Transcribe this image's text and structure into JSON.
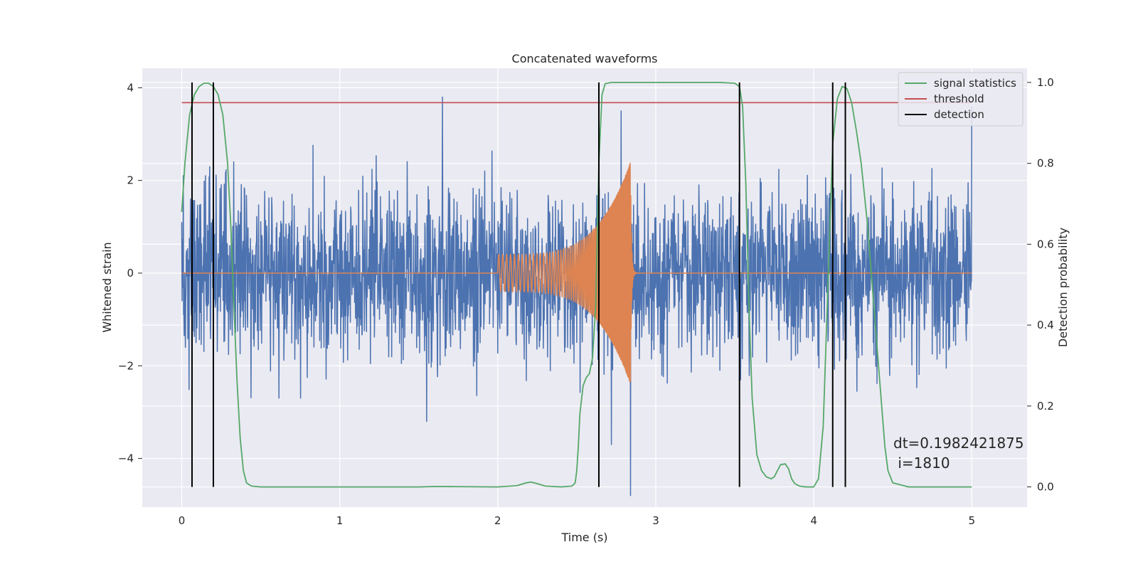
{
  "chart_data": {
    "type": "line",
    "title": "Concatenated waveforms",
    "xlabel": "Time (s)",
    "ylabel": "Whitened strain",
    "y2label": "Detection probability",
    "xlim": [
      -0.25,
      5.35
    ],
    "ylim": [
      -5.05,
      4.42
    ],
    "y2lim": [
      -0.05,
      1.035
    ],
    "x_ticks": [
      0,
      1,
      2,
      3,
      4,
      5
    ],
    "y_ticks": [
      4,
      2,
      0,
      -2,
      -4
    ],
    "y2_ticks": [
      1.0,
      0.8,
      0.6,
      0.4,
      0.2,
      0.0
    ],
    "grid": true,
    "legend_position": "top-right",
    "legend": [
      "signal statistics",
      "threshold",
      "detection"
    ],
    "colors": {
      "noise": "#4c72b0",
      "waveform": "#dd8452",
      "signal_statistics": "#55a868",
      "threshold": "#c44e52",
      "detection": "#000000",
      "plot_background": "#eaeaf2",
      "grid": "#ffffff"
    },
    "noise": {
      "description": "whitened strain noise, approximately Gaussian, sigma about 0.9",
      "x_range": [
        0,
        5
      ],
      "sigma": 0.9,
      "peaks": [
        {
          "x": 1.65,
          "y": 3.8
        },
        {
          "x": 2.84,
          "y": -4.8
        },
        {
          "x": 1.55,
          "y": -3.2
        },
        {
          "x": 2.72,
          "y": -3.7
        },
        {
          "x": 2.78,
          "y": 3.5
        },
        {
          "x": 5.0,
          "y": 3.6
        }
      ]
    },
    "waveform": {
      "description": "chirp waveform",
      "start": 2.0,
      "merger": 2.84,
      "ringdown_end": 2.9,
      "start_amplitude": 0.4,
      "peak_amplitude": 2.4,
      "start_frequency_hz": 40,
      "end_frequency_hz": 250
    },
    "signal_statistics": {
      "x": [
        0.0,
        0.02,
        0.05,
        0.08,
        0.11,
        0.14,
        0.17,
        0.2,
        0.23,
        0.26,
        0.29,
        0.31,
        0.33,
        0.35,
        0.37,
        0.39,
        0.41,
        0.44,
        0.5,
        1.0,
        1.5,
        1.6,
        2.0,
        2.12,
        2.18,
        2.21,
        2.25,
        2.3,
        2.4,
        2.47,
        2.49,
        2.5,
        2.51,
        2.52,
        2.54,
        2.56,
        2.58,
        2.6,
        2.62,
        2.64,
        2.66,
        2.68,
        2.72,
        2.8,
        3.0,
        3.4,
        3.5,
        3.53,
        3.55,
        3.57,
        3.59,
        3.61,
        3.64,
        3.67,
        3.7,
        3.73,
        3.75,
        3.77,
        3.79,
        3.82,
        3.84,
        3.86,
        3.88,
        3.91,
        3.95,
        4.0,
        4.03,
        4.06,
        4.09,
        4.12,
        4.15,
        4.18,
        4.21,
        4.24,
        4.27,
        4.3,
        4.34,
        4.38,
        4.42,
        4.45,
        4.47,
        4.5,
        4.6,
        5.0
      ],
      "y": [
        0.68,
        0.8,
        0.92,
        0.97,
        0.99,
        0.998,
        0.998,
        0.99,
        0.97,
        0.92,
        0.8,
        0.65,
        0.45,
        0.26,
        0.12,
        0.04,
        0.01,
        0.002,
        0.0,
        0.0,
        0.0,
        0.001,
        0.0,
        0.003,
        0.01,
        0.012,
        0.008,
        0.002,
        0.0,
        0.002,
        0.01,
        0.04,
        0.1,
        0.18,
        0.25,
        0.27,
        0.28,
        0.32,
        0.45,
        0.8,
        0.97,
        0.997,
        1.0,
        1.0,
        1.0,
        1.0,
        0.998,
        0.99,
        0.94,
        0.75,
        0.45,
        0.22,
        0.08,
        0.04,
        0.025,
        0.02,
        0.025,
        0.04,
        0.055,
        0.057,
        0.045,
        0.02,
        0.008,
        0.002,
        0.0,
        0.0,
        0.02,
        0.15,
        0.5,
        0.85,
        0.96,
        0.99,
        0.985,
        0.95,
        0.88,
        0.8,
        0.65,
        0.45,
        0.25,
        0.1,
        0.04,
        0.01,
        0.0,
        0.0
      ]
    },
    "threshold": {
      "x": [
        0,
        5
      ],
      "y2": 0.95
    },
    "detections": [
      0.065,
      0.2,
      2.64,
      3.53,
      4.12,
      4.2
    ],
    "annotation": {
      "line1": "dt=0.1982421875",
      "line2": " i=1810"
    }
  }
}
